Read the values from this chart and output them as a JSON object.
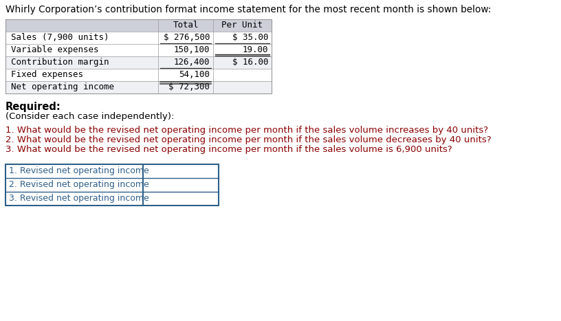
{
  "title": "Whirly Corporation’s contribution format income statement for the most recent month is shown below:",
  "table_rows": [
    [
      "Sales (7,900 units)",
      "$ 276,500",
      "$ 35.00"
    ],
    [
      "Variable expenses",
      "150,100",
      "19.00"
    ],
    [
      "Contribution margin",
      "126,400",
      "$ 16.00"
    ],
    [
      "Fixed expenses",
      "54,100",
      ""
    ],
    [
      "Net operating income",
      "$ 72,300",
      ""
    ]
  ],
  "header_bg": "#cdd0d8",
  "row_bg_even": "#eef0f4",
  "row_bg_odd": "#ffffff",
  "required_bold": "Required:",
  "required_sub": "(Consider each case independently):",
  "questions": [
    "1. What would be the revised net operating income per month if the sales volume increases by 40 units?",
    "2. What would be the revised net operating income per month if the sales volume decreases by 40 units?",
    "3. What would be the revised net operating income per month if the sales volume is 6,900 units?"
  ],
  "answer_labels": [
    "1. Revised net operating income",
    "2. Revised net operating income",
    "3. Revised net operating income"
  ],
  "text_color": "#000000",
  "question_color": "#8b0000",
  "table_border_color": "#999999",
  "answer_border_color": "#2e5f8a",
  "answer_label_color": "#2e5f8a",
  "background_color": "#ffffff",
  "title_fontsize": 9.8,
  "table_fontsize": 9.0,
  "body_fontsize": 9.5,
  "ans_fontsize": 9.0
}
